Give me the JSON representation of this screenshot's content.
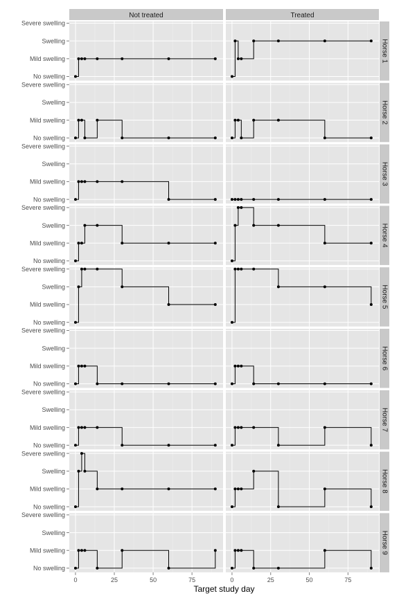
{
  "chart_data": {
    "type": "line",
    "step": "hv",
    "facet_cols": [
      "Not treated",
      "Treated"
    ],
    "facet_rows": [
      "Horse 1",
      "Horse 2",
      "Horse 3",
      "Horse 4",
      "Horse 5",
      "Horse 6",
      "Horse 7",
      "Horse 8",
      "Horse 9"
    ],
    "xlabel": "Target study day",
    "xlim": [
      -4,
      95
    ],
    "x_ticks": [
      0,
      25,
      50,
      75
    ],
    "y_levels": [
      "No swelling",
      "Mild swelling",
      "Swelling",
      "Severe swelling"
    ],
    "x": [
      0,
      2,
      4,
      6,
      14,
      30,
      60,
      90
    ],
    "series": [
      {
        "horse": "Horse 1",
        "treatment": "Not treated",
        "values": [
          0,
          1,
          1,
          1,
          1,
          1,
          1,
          1
        ]
      },
      {
        "horse": "Horse 1",
        "treatment": "Treated",
        "values": [
          0,
          2,
          1,
          1,
          2,
          2,
          2,
          2
        ]
      },
      {
        "horse": "Horse 2",
        "treatment": "Not treated",
        "values": [
          0,
          1,
          1,
          0,
          1,
          0,
          0,
          0
        ]
      },
      {
        "horse": "Horse 2",
        "treatment": "Treated",
        "values": [
          0,
          1,
          1,
          0,
          1,
          1,
          0,
          0
        ]
      },
      {
        "horse": "Horse 3",
        "treatment": "Not treated",
        "values": [
          0,
          1,
          1,
          1,
          1,
          1,
          0,
          0
        ]
      },
      {
        "horse": "Horse 3",
        "treatment": "Treated",
        "values": [
          0,
          0,
          0,
          0,
          0,
          0,
          0,
          0
        ]
      },
      {
        "horse": "Horse 4",
        "treatment": "Not treated",
        "values": [
          0,
          1,
          1,
          2,
          2,
          1,
          1,
          1
        ]
      },
      {
        "horse": "Horse 4",
        "treatment": "Treated",
        "values": [
          0,
          2,
          3,
          3,
          2,
          2,
          1,
          1
        ]
      },
      {
        "horse": "Horse 5",
        "treatment": "Not treated",
        "values": [
          0,
          2,
          3,
          3,
          3,
          2,
          1,
          1
        ]
      },
      {
        "horse": "Horse 5",
        "treatment": "Treated",
        "values": [
          0,
          3,
          3,
          3,
          3,
          2,
          2,
          1
        ]
      },
      {
        "horse": "Horse 6",
        "treatment": "Not treated",
        "values": [
          0,
          1,
          1,
          1,
          0,
          0,
          0,
          0
        ]
      },
      {
        "horse": "Horse 6",
        "treatment": "Treated",
        "values": [
          0,
          1,
          1,
          1,
          0,
          0,
          0,
          0
        ]
      },
      {
        "horse": "Horse 7",
        "treatment": "Not treated",
        "values": [
          0,
          1,
          1,
          1,
          1,
          0,
          0,
          0
        ]
      },
      {
        "horse": "Horse 7",
        "treatment": "Treated",
        "values": [
          0,
          1,
          1,
          1,
          1,
          0,
          1,
          0
        ]
      },
      {
        "horse": "Horse 8",
        "treatment": "Not treated",
        "values": [
          0,
          2,
          3,
          2,
          1,
          1,
          1,
          1
        ]
      },
      {
        "horse": "Horse 8",
        "treatment": "Treated",
        "values": [
          0,
          1,
          1,
          1,
          2,
          0,
          1,
          0
        ]
      },
      {
        "horse": "Horse 9",
        "treatment": "Not treated",
        "values": [
          0,
          1,
          1,
          1,
          0,
          1,
          0,
          1
        ]
      },
      {
        "horse": "Horse 9",
        "treatment": "Treated",
        "values": [
          0,
          1,
          1,
          1,
          0,
          0,
          1,
          0
        ]
      }
    ],
    "colors": {
      "panel_bg": "#E5E5E5",
      "strip_bg": "#C9C9C9",
      "grid_major": "#FFFFFF",
      "grid_minor": "#F0F0F0",
      "line": "#000000",
      "tick_label": "#4D4D4D"
    }
  }
}
